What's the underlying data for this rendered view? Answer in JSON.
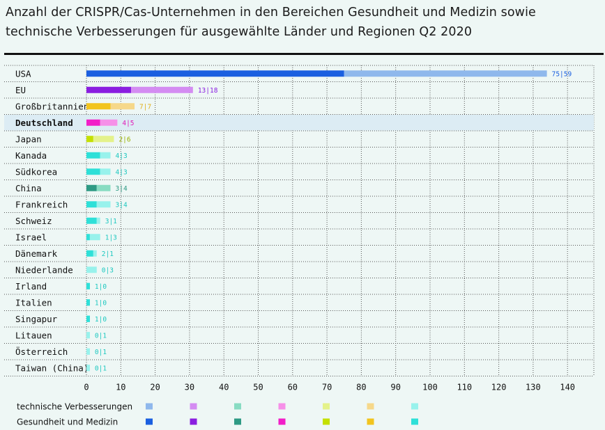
{
  "title_line1": "Anzahl der CRISPR/Cas-Unternehmen in den Bereichen Gesundheit und Medizin sowie",
  "title_line2": "technische Verbesserungen für ausgewählte Länder und Regionen Q2 2020",
  "chart_data": {
    "type": "bar",
    "orientation": "horizontal",
    "stacked": true,
    "title": "Anzahl der CRISPR/Cas-Unternehmen in den Bereichen Gesundheit und Medizin sowie technische Verbesserungen für ausgewählte Länder und Regionen Q2 2020",
    "xlim": [
      0,
      140
    ],
    "xticks": [
      0,
      10,
      20,
      30,
      40,
      50,
      60,
      70,
      80,
      90,
      100,
      110,
      120,
      130,
      140
    ],
    "grid": true,
    "highlighted_category": "Deutschland",
    "categories": [
      "USA",
      "EU",
      "Großbritannien",
      "Deutschland",
      "Japan",
      "Kanada",
      "Südkorea",
      "China",
      "Frankreich",
      "Schweiz",
      "Israel",
      "Dänemark",
      "Niederlande",
      "Irland",
      "Italien",
      "Singapur",
      "Litauen",
      "Österreich",
      "Taiwan (China)"
    ],
    "series": [
      {
        "name": "Gesundheit und Medizin",
        "values": [
          75,
          13,
          7,
          4,
          2,
          4,
          4,
          3,
          3,
          3,
          1,
          2,
          0,
          1,
          1,
          1,
          0,
          0,
          0
        ]
      },
      {
        "name": "technische Verbesserungen",
        "values": [
          59,
          18,
          7,
          5,
          6,
          3,
          3,
          4,
          4,
          1,
          3,
          1,
          3,
          0,
          0,
          0,
          1,
          1,
          1
        ]
      }
    ],
    "data_labels": [
      "75|59",
      "13|18",
      "7|7",
      "4|5",
      "2|6",
      "4|3",
      "4|3",
      "3|4",
      "3|4",
      "3|1",
      "1|3",
      "2|1",
      "0|3",
      "1|0",
      "1|0",
      "1|0",
      "0|1",
      "0|1",
      "0|1"
    ],
    "color_groups": [
      {
        "dark": "#1a5fe0",
        "light": "#8fb8ec",
        "label": "#1a5fe0"
      },
      {
        "dark": "#8a1ee0",
        "light": "#d48cf2",
        "label": "#8a1ee0"
      },
      {
        "dark": "#2e9a84",
        "light": "#88dcc2",
        "label": "#2e9a84"
      },
      {
        "dark": "#f21ec8",
        "light": "#f690e8",
        "label": "#e01cb8"
      },
      {
        "dark": "#c4e000",
        "light": "#e4f28a",
        "label": "#9ab000"
      },
      {
        "dark": "#f2c41e",
        "light": "#f6d88a",
        "label": "#e0b01a"
      },
      {
        "dark": "#2ee0d8",
        "light": "#98f2ec",
        "label": "#1ec8c0"
      }
    ],
    "bar_color_group": [
      0,
      1,
      5,
      3,
      4,
      6,
      6,
      2,
      6,
      6,
      6,
      6,
      6,
      6,
      6,
      6,
      6,
      6,
      6
    ],
    "legend": {
      "placement": "bottom",
      "rows": [
        {
          "label": "technische Verbesserungen",
          "shade": "light"
        },
        {
          "label": "Gesundheit und Medizin",
          "shade": "dark"
        }
      ]
    }
  }
}
